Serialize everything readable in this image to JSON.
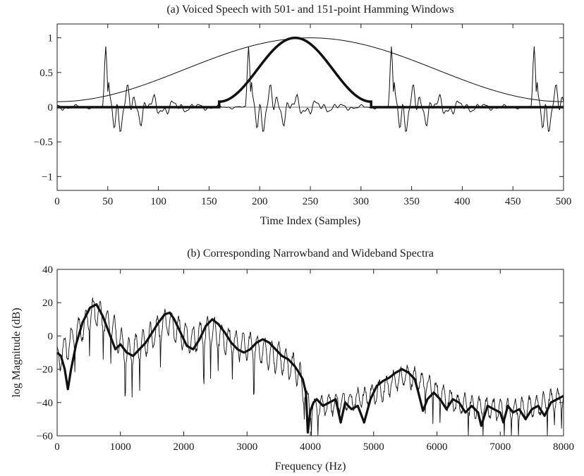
{
  "chart_data": [
    {
      "type": "line",
      "title": "(a) Voiced Speech with 501- and 151-point Hamming Windows",
      "xlabel": "Time Index (Samples)",
      "ylabel": "",
      "xlim": [
        0,
        500
      ],
      "ylim": [
        -1.2,
        1.2
      ],
      "x_ticks": [
        "0",
        "50",
        "100",
        "150",
        "200",
        "250",
        "300",
        "350",
        "400",
        "450",
        "500"
      ],
      "y_ticks": [
        "1",
        "0.5",
        "0",
        "−0.5",
        "−1"
      ],
      "grid": false,
      "pitch_period_samples": 141,
      "series": [
        {
          "role": "voiced-speech",
          "style": "thin",
          "pitch_pulse_positions": [
            48,
            189,
            330,
            471
          ],
          "pulse_peak": 0.88,
          "range": [
            -0.48,
            0.88
          ]
        },
        {
          "role": "hamming-window-501",
          "style": "thin",
          "length": 501,
          "center": 250,
          "min": 0.08,
          "max": 1.0
        },
        {
          "role": "hamming-window-151",
          "style": "thick",
          "start": 160,
          "end": 310,
          "center": 235,
          "min": 0.08,
          "max": 1.0
        }
      ]
    },
    {
      "type": "line",
      "title": "(b) Corresponding Narrowband and Wideband Spectra",
      "xlabel": "Frequency (Hz)",
      "ylabel": "log Magnitude (dB)",
      "xlim": [
        0,
        8000
      ],
      "ylim": [
        -60,
        40
      ],
      "x_ticks": [
        "0",
        "1000",
        "2000",
        "3000",
        "4000",
        "5000",
        "6000",
        "7000",
        "8000"
      ],
      "y_ticks": [
        "40",
        "20",
        "0",
        "−20",
        "−40",
        "−60"
      ],
      "grid": false,
      "harmonic_spacing_hz": 113,
      "series": [
        {
          "role": "narrowband-spectrum",
          "style": "thin",
          "envelope_x": [
            0,
            300,
            600,
            900,
            1100,
            1400,
            1750,
            2100,
            2450,
            2800,
            3100,
            3500,
            3800,
            4000,
            4300,
            4700,
            5100,
            5500,
            5900,
            6300,
            6700,
            7100,
            7500,
            8000
          ],
          "envelope_y": [
            -8,
            8,
            22,
            10,
            -4,
            3,
            16,
            4,
            10,
            2,
            0,
            -6,
            -14,
            -40,
            -36,
            -34,
            -28,
            -18,
            -26,
            -36,
            -38,
            -40,
            -38,
            -32
          ]
        },
        {
          "role": "wideband-spectrum",
          "style": "thick",
          "x": [
            0,
            60,
            120,
            170,
            220,
            300,
            400,
            520,
            620,
            720,
            820,
            920,
            1000,
            1100,
            1200,
            1300,
            1400,
            1500,
            1600,
            1700,
            1780,
            1850,
            1950,
            2050,
            2150,
            2250,
            2350,
            2450,
            2550,
            2650,
            2750,
            2850,
            2950,
            3050,
            3150,
            3250,
            3350,
            3450,
            3550,
            3650,
            3750,
            3820,
            3880,
            3930,
            3960,
            4000,
            4050,
            4100,
            4200,
            4300,
            4400,
            4480,
            4550,
            4650,
            4750,
            4850,
            4950,
            5050,
            5150,
            5250,
            5350,
            5450,
            5550,
            5650,
            5700,
            5780,
            5850,
            5950,
            6050,
            6150,
            6250,
            6350,
            6450,
            6550,
            6650,
            6700,
            6800,
            6900,
            7000,
            7050,
            7120,
            7200,
            7300,
            7400,
            7500,
            7600,
            7700,
            7800,
            7900,
            8000
          ],
          "y": [
            -10,
            -12,
            -20,
            -32,
            -20,
            -5,
            8,
            17,
            19,
            12,
            2,
            -8,
            -5,
            -10,
            -12,
            -8,
            -4,
            2,
            8,
            13,
            14,
            10,
            2,
            -6,
            -8,
            -2,
            6,
            10,
            7,
            2,
            -4,
            -8,
            -10,
            -8,
            -4,
            -2,
            -4,
            -8,
            -12,
            -14,
            -18,
            -22,
            -26,
            -34,
            -58,
            -45,
            -40,
            -38,
            -42,
            -40,
            -38,
            -52,
            -40,
            -44,
            -42,
            -52,
            -38,
            -30,
            -27,
            -25,
            -22,
            -20,
            -22,
            -26,
            -33,
            -45,
            -38,
            -34,
            -38,
            -44,
            -38,
            -40,
            -46,
            -42,
            -46,
            -54,
            -42,
            -44,
            -46,
            -52,
            -42,
            -46,
            -44,
            -50,
            -44,
            -42,
            -48,
            -40,
            -38,
            -36
          ]
        }
      ]
    }
  ]
}
